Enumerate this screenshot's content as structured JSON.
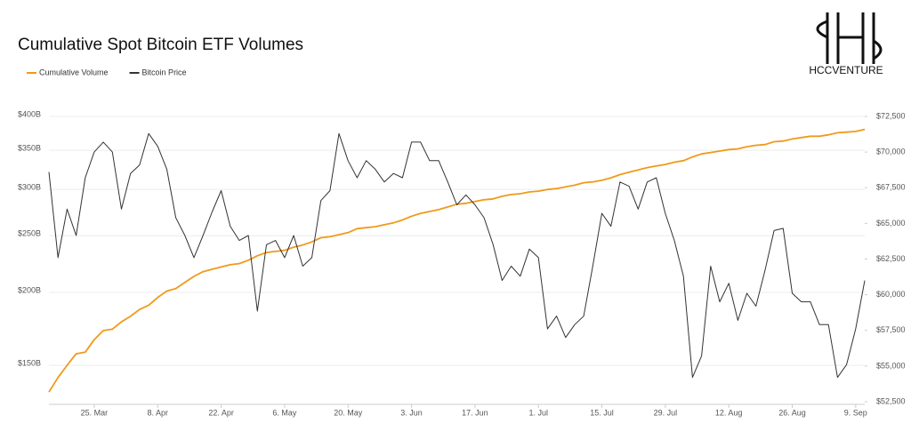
{
  "chart_data": {
    "type": "line",
    "title": "Cumulative Spot Bitcoin ETF Volumes",
    "logo_text": "HCCVENTURE",
    "categories": [
      null,
      null,
      null,
      null,
      null,
      "25. Mar",
      null,
      null,
      null,
      null,
      null,
      null,
      "8. Apr",
      null,
      null,
      null,
      null,
      null,
      null,
      "22. Apr",
      null,
      null,
      null,
      null,
      null,
      null,
      "6. May",
      null,
      null,
      null,
      null,
      null,
      null,
      "20. May",
      null,
      null,
      null,
      null,
      null,
      null,
      "3. Jun",
      null,
      null,
      null,
      null,
      null,
      null,
      "17. Jun",
      null,
      null,
      null,
      null,
      null,
      null,
      "1. Jul",
      null,
      null,
      null,
      null,
      null,
      null,
      "15. Jul",
      null,
      null,
      null,
      null,
      null,
      null,
      "29. Jul",
      null,
      null,
      null,
      null,
      null,
      null,
      "12. Aug",
      null,
      null,
      null,
      null,
      null,
      null,
      "26. Aug",
      null,
      null,
      null,
      null,
      null,
      null,
      "9. Sep",
      null
    ],
    "series": [
      {
        "name": "Cumulative Volume",
        "color": "#f09a1a",
        "axis": "y",
        "values": [
          135,
          143,
          150,
          157,
          158,
          166,
          172,
          173,
          178,
          182,
          187,
          190,
          196,
          201,
          203,
          208,
          213,
          217,
          219,
          221,
          223,
          224,
          227,
          231,
          234,
          235,
          236,
          239,
          241,
          244,
          248,
          249,
          251,
          253,
          257,
          258,
          259,
          261,
          263,
          266,
          270,
          273,
          275,
          277,
          280,
          283,
          284,
          286,
          288,
          289,
          292,
          294,
          295,
          297,
          298,
          300,
          301,
          303,
          305,
          308,
          309,
          311,
          314,
          318,
          321,
          324,
          327,
          329,
          331,
          334,
          336,
          341,
          345,
          347,
          349,
          351,
          352,
          355,
          357,
          358,
          362,
          363,
          366,
          368,
          370,
          370,
          372,
          375,
          376,
          377,
          380
        ]
      },
      {
        "name": "Bitcoin Price",
        "color": "#333333",
        "axis": "y2",
        "values": [
          68600,
          62600,
          66000,
          64150,
          68200,
          70000,
          70700,
          70000,
          66000,
          68500,
          69100,
          71300,
          70400,
          68800,
          65400,
          64150,
          62600,
          64150,
          65800,
          67300,
          64800,
          63800,
          64150,
          58850,
          63500,
          63800,
          62600,
          64150,
          62000,
          62600,
          66600,
          67300,
          71300,
          69400,
          68200,
          69400,
          68800,
          67900,
          68500,
          68200,
          70700,
          70700,
          69400,
          69400,
          67900,
          66300,
          67000,
          66300,
          65400,
          63500,
          61000,
          62000,
          61300,
          63200,
          62600,
          57600,
          58500,
          57000,
          57900,
          58500,
          62000,
          65700,
          64800,
          67900,
          67600,
          66000,
          67900,
          68200,
          65700,
          63800,
          61300,
          54200,
          55700,
          62000,
          59500,
          60800,
          58200,
          60100,
          59200,
          61700,
          64500,
          64650,
          60100,
          59500,
          59500,
          57900,
          57900,
          54200,
          55100,
          57600,
          61000
        ]
      }
    ],
    "ylim": [
      130,
      400
    ],
    "yscale": "log",
    "yticks": [
      {
        "value": 150,
        "label": "$150B"
      },
      {
        "value": 200,
        "label": "$200B"
      },
      {
        "value": 250,
        "label": "$250B"
      },
      {
        "value": 300,
        "label": "$300B"
      },
      {
        "value": 350,
        "label": "$350B"
      },
      {
        "value": 400,
        "label": "$400B"
      }
    ],
    "y2lim": [
      52500,
      72500
    ],
    "y2ticks": [
      {
        "value": 52500,
        "label": "$52,500"
      },
      {
        "value": 55000,
        "label": "$55,000"
      },
      {
        "value": 57500,
        "label": "$57,500"
      },
      {
        "value": 60000,
        "label": "$60,000"
      },
      {
        "value": 62500,
        "label": "$62,500"
      },
      {
        "value": 65000,
        "label": "$65,000"
      },
      {
        "value": 67500,
        "label": "$67,500"
      },
      {
        "value": 70000,
        "label": "$70,000"
      },
      {
        "value": 72500,
        "label": "$72,500"
      }
    ],
    "grid": true
  }
}
